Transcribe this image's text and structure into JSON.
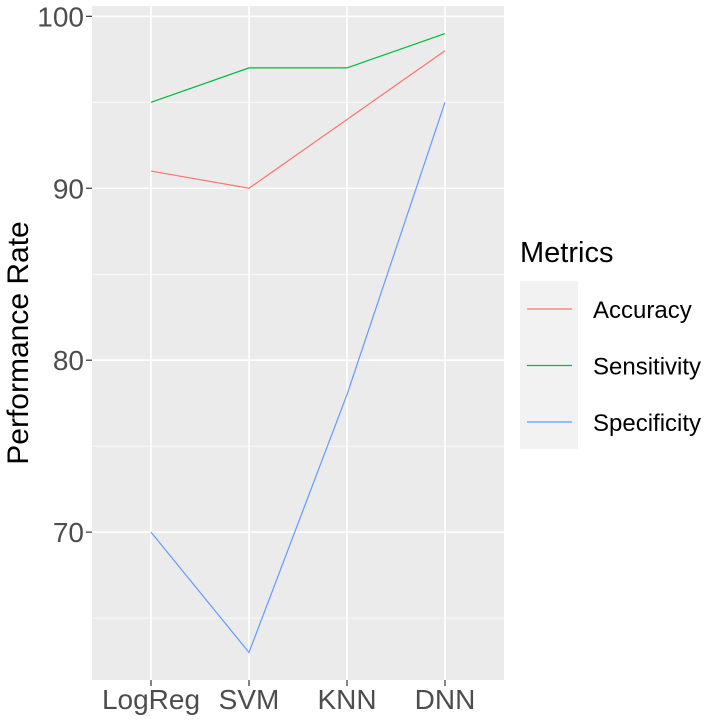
{
  "chart_data": {
    "type": "line",
    "categories": [
      "LogReg",
      "SVM",
      "KNN",
      "DNN"
    ],
    "series": [
      {
        "name": "Accuracy",
        "color": "#F8766D",
        "values": [
          91,
          90,
          94,
          98
        ]
      },
      {
        "name": "Sensitivity",
        "color": "#00BA38",
        "values": [
          95,
          97,
          97,
          99
        ]
      },
      {
        "name": "Specificity",
        "color": "#619CFF",
        "values": [
          70,
          63,
          78,
          95
        ]
      }
    ],
    "title": "",
    "xlabel": "",
    "ylabel": "Performance Rate",
    "ylim": [
      61.4,
      100.6
    ],
    "yticks": [
      70,
      80,
      90,
      100
    ],
    "grid": true,
    "legend": {
      "title": "Metrics",
      "position": "right"
    },
    "colors": {
      "panel": "#EBEBEB",
      "grid": "#FFFFFF",
      "legend_key": "#F2F2F2"
    }
  }
}
